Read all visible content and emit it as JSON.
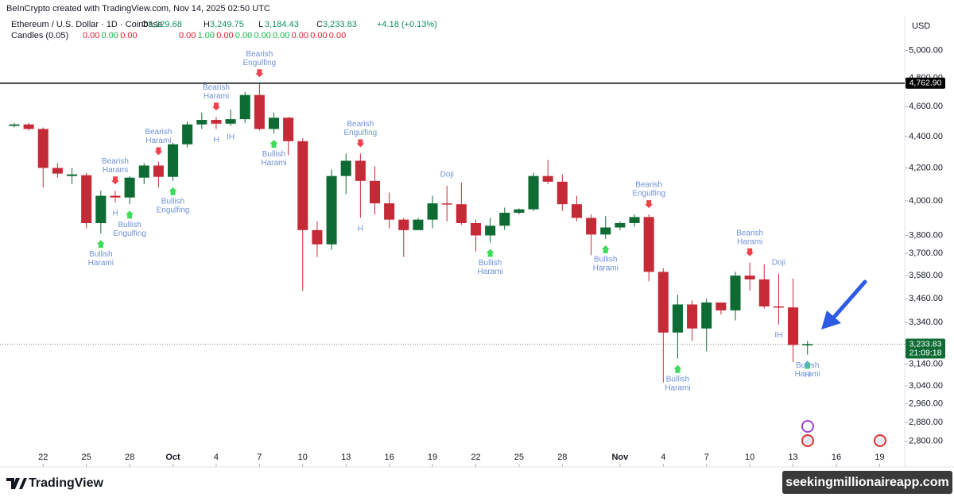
{
  "header": {
    "credit": "BeInCrypto created with TradingView.com, Nov 14, 2025 02:50 UTC",
    "symbol": "Ethereum / U.S. Dollar · 1D · Coinbase",
    "ohlc": [
      {
        "key": "O",
        "value": "3,229.68"
      },
      {
        "key": "H",
        "value": "3,249.75"
      },
      {
        "key": "L",
        "value": "3,184.43"
      },
      {
        "key": "C",
        "value": "3,233.83"
      }
    ],
    "change": "+4.18 (+0.13%)",
    "indicator": {
      "name": "Candles (0.05)",
      "groups": [
        [
          {
            "text": "0.00",
            "color": "#e0202f"
          },
          {
            "text": "0.00",
            "color": "#16b04a"
          },
          {
            "text": "0.00",
            "color": "#e0202f"
          }
        ],
        [
          {
            "text": "0.00",
            "color": "#e0202f"
          },
          {
            "text": "1.00",
            "color": "#16b04a"
          },
          {
            "text": "0.00",
            "color": "#e0202f"
          },
          {
            "text": "0.00",
            "color": "#16b04a"
          },
          {
            "text": "0.00",
            "color": "#16b04a"
          },
          {
            "text": "0.00",
            "color": "#16b04a"
          },
          {
            "text": "0.00",
            "color": "#e0202f"
          },
          {
            "text": "0.00",
            "color": "#e0202f"
          },
          {
            "text": "0.00",
            "color": "#e0202f"
          }
        ]
      ]
    },
    "currency": "USD"
  },
  "chart_data": {
    "type": "candlestick",
    "log_scale": true,
    "up_color": "#0f6b34",
    "down_color": "#c42b37",
    "x": [
      0,
      1,
      2,
      3,
      4,
      5,
      6,
      7,
      8,
      9,
      10,
      11,
      12,
      13,
      14,
      15,
      16,
      17,
      18,
      19,
      20,
      21,
      22,
      23,
      24,
      25,
      26,
      27,
      28,
      29,
      30,
      31,
      32,
      33,
      34,
      35,
      36,
      37,
      38,
      39,
      40,
      41,
      42,
      43,
      44,
      45,
      46,
      47,
      48,
      49,
      50,
      51,
      52,
      53,
      54,
      55
    ],
    "open": [
      4470,
      4480,
      4450,
      4200,
      4150,
      4155,
      3870,
      4030,
      4020,
      4140,
      4215,
      4145,
      4350,
      4480,
      4510,
      4485,
      4515,
      4680,
      4450,
      4525,
      4370,
      3830,
      3750,
      4150,
      4245,
      4120,
      3985,
      3890,
      3830,
      3890,
      3985,
      3980,
      3870,
      3800,
      3855,
      3930,
      3950,
      4150,
      4115,
      3980,
      3900,
      3805,
      3845,
      3870,
      3905,
      3600,
      3290,
      3430,
      3310,
      3440,
      3400,
      3580,
      3560,
      3420,
      3415,
      3229.68
    ],
    "high": [
      4490,
      4490,
      4460,
      4230,
      4200,
      4170,
      4060,
      4060,
      4150,
      4230,
      4240,
      4360,
      4500,
      4560,
      4530,
      4580,
      4700,
      4760,
      4560,
      4530,
      4390,
      3880,
      4190,
      4290,
      4290,
      4210,
      4050,
      3900,
      3900,
      4030,
      4090,
      4110,
      3890,
      3900,
      3960,
      3955,
      4170,
      4250,
      4160,
      4030,
      3920,
      3910,
      3880,
      3920,
      3920,
      3620,
      3480,
      3450,
      3460,
      3440,
      3600,
      3650,
      3640,
      3590,
      3565,
      3249.75
    ],
    "low": [
      4460,
      4440,
      4080,
      4140,
      4100,
      3840,
      3810,
      3990,
      3980,
      4100,
      4080,
      4120,
      4330,
      4450,
      4450,
      4470,
      4490,
      4440,
      4420,
      4280,
      3500,
      3680,
      3720,
      4040,
      3900,
      3920,
      3840,
      3680,
      3830,
      3840,
      3880,
      3860,
      3710,
      3760,
      3830,
      3920,
      3940,
      4100,
      3940,
      3880,
      3690,
      3780,
      3830,
      3850,
      3550,
      3055,
      3165,
      3250,
      3200,
      3380,
      3350,
      3500,
      3410,
      3330,
      3150,
      3184.43
    ],
    "close": [
      4480,
      4450,
      4200,
      4165,
      4160,
      3870,
      4030,
      4020,
      4140,
      4215,
      4145,
      4350,
      4480,
      4510,
      4485,
      4515,
      4680,
      4450,
      4525,
      4370,
      3830,
      3750,
      4150,
      4245,
      4120,
      3985,
      3890,
      3830,
      3890,
      3985,
      3980,
      3870,
      3800,
      3855,
      3930,
      3950,
      4150,
      4115,
      3980,
      3900,
      3805,
      3845,
      3870,
      3905,
      3600,
      3290,
      3430,
      3310,
      3440,
      3400,
      3580,
      3560,
      3420,
      3415,
      3230,
      3233.83
    ],
    "xlim": [
      -0.55,
      61.3
    ],
    "xticks": [
      {
        "value": 2,
        "label": "22"
      },
      {
        "value": 5,
        "label": "25"
      },
      {
        "value": 8,
        "label": "28"
      },
      {
        "value": 11,
        "label": "Oct"
      },
      {
        "value": 14,
        "label": "4"
      },
      {
        "value": 17,
        "label": "7"
      },
      {
        "value": 20,
        "label": "10"
      },
      {
        "value": 23,
        "label": "13"
      },
      {
        "value": 26,
        "label": "16"
      },
      {
        "value": 29,
        "label": "19"
      },
      {
        "value": 32,
        "label": "22"
      },
      {
        "value": 35,
        "label": "25"
      },
      {
        "value": 38,
        "label": "28"
      },
      {
        "value": 42,
        "label": "Nov"
      },
      {
        "value": 45,
        "label": "4"
      },
      {
        "value": 48,
        "label": "7"
      },
      {
        "value": 51,
        "label": "10"
      },
      {
        "value": 54,
        "label": "13"
      },
      {
        "value": 57,
        "label": "16"
      },
      {
        "value": 60,
        "label": "19"
      }
    ],
    "ylim": [
      2760,
      5110
    ],
    "yticks": [
      {
        "value": 5000,
        "label": "5,000.00"
      },
      {
        "value": 4800,
        "label": "4,800.00"
      },
      {
        "value": 4600,
        "label": "4,600.00"
      },
      {
        "value": 4400,
        "label": "4,400.00"
      },
      {
        "value": 4200,
        "label": "4,200.00"
      },
      {
        "value": 4000,
        "label": "4,000.00"
      },
      {
        "value": 3800,
        "label": "3,800.00"
      },
      {
        "value": 3700,
        "label": "3,700.00"
      },
      {
        "value": 3580,
        "label": "3,580.00"
      },
      {
        "value": 3460,
        "label": "3,460.00"
      },
      {
        "value": 3340,
        "label": "3,340.00"
      },
      {
        "value": 3140,
        "label": "3,140.00"
      },
      {
        "value": 3040,
        "label": "3,040.00"
      },
      {
        "value": 2960,
        "label": "2,960.00"
      },
      {
        "value": 2880,
        "label": "2,880.00"
      },
      {
        "value": 2800,
        "label": "2,800.00"
      }
    ],
    "horizontal_line": {
      "value": 4762.9,
      "label": "4,762.90",
      "color": "#000000"
    },
    "last_price": {
      "value": 3233.83,
      "label": "3,233.83",
      "countdown": "21:09:18",
      "color": "#0f6b34"
    },
    "annotations": [
      {
        "x": 6,
        "side": "below",
        "arrow": "#3ddc5a",
        "lines": [
          "Bullish",
          "Harami"
        ]
      },
      {
        "x": 7,
        "side": "above",
        "arrow": "#f0414d",
        "lines": [
          "Bearish",
          "Harami"
        ]
      },
      {
        "x": 7,
        "side": "below",
        "lines": [
          "H"
        ]
      },
      {
        "x": 8,
        "side": "below",
        "arrow": "#3ddc5a",
        "lines": [
          "Bullish",
          "Engulfing"
        ]
      },
      {
        "x": 10,
        "side": "above",
        "arrow": "#f0414d",
        "lines": [
          "Bearish",
          "Harami"
        ]
      },
      {
        "x": 11,
        "side": "below",
        "arrow": "#3ddc5a",
        "lines": [
          "Bullish",
          "Engulfing"
        ]
      },
      {
        "x": 14,
        "side": "above",
        "arrow": "#f0414d",
        "lines": [
          "Bearish",
          "Harami"
        ]
      },
      {
        "x": 14,
        "side": "below",
        "lines": [
          "H"
        ]
      },
      {
        "x": 15,
        "side": "below",
        "lines": [
          "IH"
        ]
      },
      {
        "x": 17,
        "side": "above",
        "arrow": "#f0414d",
        "lines": [
          "Bearish",
          "Engulfing"
        ]
      },
      {
        "x": 18,
        "side": "below",
        "arrow": "#3ddc5a",
        "lines": [
          "Bullish",
          "Harami"
        ]
      },
      {
        "x": 24,
        "side": "above",
        "arrow": "#f0414d",
        "lines": [
          "Bearish",
          "Engulfing"
        ]
      },
      {
        "x": 24,
        "side": "below",
        "lines": [
          "H"
        ]
      },
      {
        "x": 30,
        "side": "above",
        "lines": [
          "Doji"
        ]
      },
      {
        "x": 33,
        "side": "below",
        "arrow": "#3ddc5a",
        "lines": [
          "Bullish",
          "Harami"
        ]
      },
      {
        "x": 41,
        "side": "below",
        "arrow": "#3ddc5a",
        "lines": [
          "Bullish",
          "Harami"
        ]
      },
      {
        "x": 44,
        "side": "above",
        "arrow": "#f0414d",
        "lines": [
          "Bearish",
          "Engulfing"
        ]
      },
      {
        "x": 46,
        "side": "below",
        "arrow": "#3ddc5a",
        "lines": [
          "Bullish",
          "Harami"
        ]
      },
      {
        "x": 51,
        "side": "above",
        "arrow": "#f0414d",
        "lines": [
          "Bearish",
          "Harami"
        ]
      },
      {
        "x": 53,
        "side": "above",
        "lines": [
          "Doji"
        ]
      },
      {
        "x": 53,
        "side": "below",
        "lines": [
          "IH"
        ]
      },
      {
        "x": 55,
        "side": "below",
        "arrow": "#3ddc5a",
        "lines": [
          "H"
        ]
      },
      {
        "x": 55,
        "side": "below",
        "lines": [
          "Bullish",
          "Harami"
        ]
      }
    ]
  },
  "footer": {
    "logo": "TradingView",
    "watermark": "seekingmillionaireapp.com"
  }
}
